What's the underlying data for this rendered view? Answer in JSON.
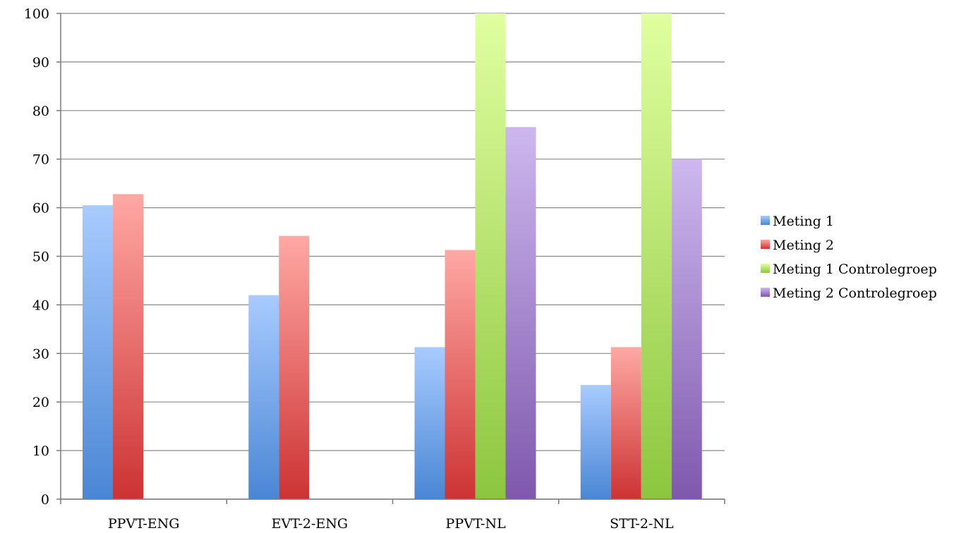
{
  "chart_data": {
    "type": "bar",
    "categories": [
      "PPVT-ENG",
      "EVT-2-ENG",
      "PPVT-NL",
      "STT-2-NL"
    ],
    "series": [
      {
        "name": "Meting 1",
        "values": [
          60.5,
          42,
          31.3,
          23.5
        ],
        "color": "#4a86d4",
        "color_light": "#a8cbff"
      },
      {
        "name": "Meting 2",
        "values": [
          62.8,
          54.2,
          51.3,
          31.3
        ],
        "color": "#cc3333",
        "color_light": "#ffa8a4"
      },
      {
        "name": "Meting 1 Controlegroep",
        "values": [
          null,
          null,
          100,
          100
        ],
        "color": "#8cc63f",
        "color_light": "#e0ffa0"
      },
      {
        "name": "Meting 2 Controlegroep",
        "values": [
          null,
          null,
          76.6,
          70
        ],
        "color": "#7f58ad",
        "color_light": "#cdb8ee"
      }
    ],
    "ylim": [
      0,
      100
    ],
    "yticks": [
      0,
      10,
      20,
      30,
      40,
      50,
      60,
      70,
      80,
      90,
      100
    ],
    "grid": true,
    "legend": "right",
    "title": "",
    "xlabel": "",
    "ylabel": ""
  }
}
